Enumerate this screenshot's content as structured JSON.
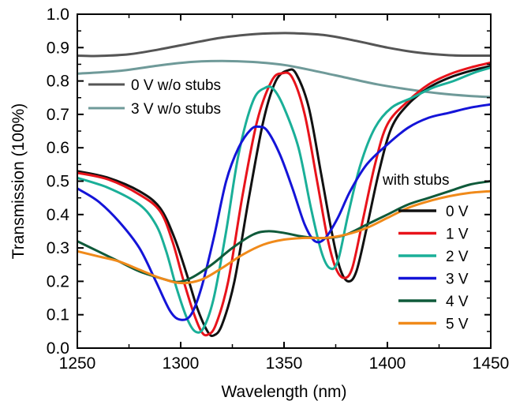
{
  "chart_data": {
    "type": "line",
    "xlabel": "Wavelength (nm)",
    "ylabel": "Transmission (100%)",
    "xlim": [
      1250,
      1450
    ],
    "ylim": [
      0.0,
      1.0
    ],
    "xticks": [
      1250,
      1300,
      1350,
      1400,
      1450
    ],
    "xtick_labels": [
      "1250",
      "1300",
      "1350",
      "1400",
      "1450"
    ],
    "yticks": [
      0.0,
      0.1,
      0.2,
      0.3,
      0.4,
      0.5,
      0.6,
      0.7,
      0.8,
      0.9,
      1.0
    ],
    "ytick_labels": [
      "0.0",
      "0.1",
      "0.2",
      "0.3",
      "0.4",
      "0.5",
      "0.6",
      "0.7",
      "0.8",
      "0.9",
      "1.0"
    ],
    "grid": false,
    "legend_title": "with stubs",
    "series": [
      {
        "name": "0 V w/o stubs",
        "color": "#555555",
        "legend_group": "top",
        "points": [
          [
            1250,
            0.876
          ],
          [
            1260,
            0.875
          ],
          [
            1275,
            0.88
          ],
          [
            1290,
            0.895
          ],
          [
            1305,
            0.913
          ],
          [
            1320,
            0.93
          ],
          [
            1335,
            0.94
          ],
          [
            1345,
            0.943
          ],
          [
            1355,
            0.943
          ],
          [
            1370,
            0.937
          ],
          [
            1385,
            0.92
          ],
          [
            1400,
            0.9
          ],
          [
            1415,
            0.885
          ],
          [
            1430,
            0.877
          ],
          [
            1440,
            0.876
          ],
          [
            1450,
            0.876
          ]
        ]
      },
      {
        "name": "3 V w/o stubs",
        "color": "#6f9a99",
        "legend_group": "top",
        "points": [
          [
            1250,
            0.822
          ],
          [
            1270,
            0.83
          ],
          [
            1290,
            0.847
          ],
          [
            1305,
            0.857
          ],
          [
            1320,
            0.86
          ],
          [
            1335,
            0.857
          ],
          [
            1350,
            0.848
          ],
          [
            1365,
            0.83
          ],
          [
            1380,
            0.81
          ],
          [
            1395,
            0.79
          ],
          [
            1410,
            0.775
          ],
          [
            1425,
            0.763
          ],
          [
            1440,
            0.755
          ],
          [
            1450,
            0.752
          ]
        ]
      },
      {
        "name": "0 V",
        "color": "#111111",
        "legend_group": "stubs",
        "points": [
          [
            1250,
            0.53
          ],
          [
            1265,
            0.51
          ],
          [
            1280,
            0.47
          ],
          [
            1290,
            0.42
          ],
          [
            1297,
            0.33
          ],
          [
            1303,
            0.22
          ],
          [
            1308,
            0.12
          ],
          [
            1313,
            0.05
          ],
          [
            1316,
            0.038
          ],
          [
            1320,
            0.07
          ],
          [
            1326,
            0.2
          ],
          [
            1333,
            0.45
          ],
          [
            1340,
            0.68
          ],
          [
            1346,
            0.8
          ],
          [
            1352,
            0.832
          ],
          [
            1356,
            0.82
          ],
          [
            1362,
            0.72
          ],
          [
            1368,
            0.52
          ],
          [
            1373,
            0.35
          ],
          [
            1377,
            0.24
          ],
          [
            1381,
            0.2
          ],
          [
            1385,
            0.23
          ],
          [
            1390,
            0.36
          ],
          [
            1396,
            0.53
          ],
          [
            1402,
            0.66
          ],
          [
            1410,
            0.73
          ],
          [
            1420,
            0.78
          ],
          [
            1430,
            0.81
          ],
          [
            1440,
            0.83
          ],
          [
            1450,
            0.845
          ]
        ]
      },
      {
        "name": "1 V",
        "color": "#e8131b",
        "legend_group": "stubs",
        "points": [
          [
            1250,
            0.525
          ],
          [
            1265,
            0.505
          ],
          [
            1280,
            0.46
          ],
          [
            1290,
            0.41
          ],
          [
            1296,
            0.32
          ],
          [
            1301,
            0.21
          ],
          [
            1306,
            0.11
          ],
          [
            1310,
            0.05
          ],
          [
            1313,
            0.04
          ],
          [
            1317,
            0.07
          ],
          [
            1323,
            0.2
          ],
          [
            1330,
            0.46
          ],
          [
            1337,
            0.68
          ],
          [
            1344,
            0.8
          ],
          [
            1349,
            0.823
          ],
          [
            1354,
            0.81
          ],
          [
            1360,
            0.7
          ],
          [
            1366,
            0.5
          ],
          [
            1371,
            0.33
          ],
          [
            1375,
            0.24
          ],
          [
            1379,
            0.21
          ],
          [
            1383,
            0.24
          ],
          [
            1388,
            0.38
          ],
          [
            1394,
            0.55
          ],
          [
            1400,
            0.67
          ],
          [
            1410,
            0.74
          ],
          [
            1420,
            0.79
          ],
          [
            1430,
            0.82
          ],
          [
            1440,
            0.84
          ],
          [
            1450,
            0.855
          ]
        ]
      },
      {
        "name": "2 V",
        "color": "#1aaf98",
        "legend_group": "stubs",
        "points": [
          [
            1250,
            0.51
          ],
          [
            1265,
            0.48
          ],
          [
            1280,
            0.43
          ],
          [
            1288,
            0.37
          ],
          [
            1293,
            0.29
          ],
          [
            1298,
            0.18
          ],
          [
            1303,
            0.09
          ],
          [
            1307,
            0.05
          ],
          [
            1311,
            0.06
          ],
          [
            1316,
            0.15
          ],
          [
            1322,
            0.35
          ],
          [
            1328,
            0.58
          ],
          [
            1335,
            0.74
          ],
          [
            1341,
            0.78
          ],
          [
            1345,
            0.775
          ],
          [
            1350,
            0.72
          ],
          [
            1357,
            0.6
          ],
          [
            1363,
            0.42
          ],
          [
            1368,
            0.29
          ],
          [
            1372,
            0.24
          ],
          [
            1376,
            0.26
          ],
          [
            1381,
            0.4
          ],
          [
            1387,
            0.55
          ],
          [
            1394,
            0.66
          ],
          [
            1402,
            0.72
          ],
          [
            1412,
            0.75
          ],
          [
            1422,
            0.78
          ],
          [
            1432,
            0.8
          ],
          [
            1442,
            0.825
          ],
          [
            1450,
            0.84
          ]
        ]
      },
      {
        "name": "3 V",
        "color": "#1414d8",
        "legend_group": "stubs",
        "points": [
          [
            1250,
            0.478
          ],
          [
            1260,
            0.44
          ],
          [
            1270,
            0.38
          ],
          [
            1280,
            0.3
          ],
          [
            1288,
            0.2
          ],
          [
            1295,
            0.11
          ],
          [
            1300,
            0.085
          ],
          [
            1305,
            0.1
          ],
          [
            1310,
            0.18
          ],
          [
            1316,
            0.33
          ],
          [
            1322,
            0.5
          ],
          [
            1328,
            0.6
          ],
          [
            1334,
            0.655
          ],
          [
            1338,
            0.663
          ],
          [
            1342,
            0.65
          ],
          [
            1348,
            0.58
          ],
          [
            1354,
            0.48
          ],
          [
            1360,
            0.37
          ],
          [
            1365,
            0.32
          ],
          [
            1370,
            0.33
          ],
          [
            1376,
            0.39
          ],
          [
            1382,
            0.47
          ],
          [
            1390,
            0.55
          ],
          [
            1400,
            0.61
          ],
          [
            1410,
            0.66
          ],
          [
            1420,
            0.69
          ],
          [
            1430,
            0.705
          ],
          [
            1440,
            0.72
          ],
          [
            1450,
            0.73
          ]
        ]
      },
      {
        "name": "4 V",
        "color": "#0f5a3a",
        "legend_group": "stubs",
        "points": [
          [
            1250,
            0.32
          ],
          [
            1260,
            0.29
          ],
          [
            1270,
            0.26
          ],
          [
            1280,
            0.23
          ],
          [
            1290,
            0.21
          ],
          [
            1298,
            0.198
          ],
          [
            1305,
            0.21
          ],
          [
            1315,
            0.25
          ],
          [
            1325,
            0.3
          ],
          [
            1335,
            0.34
          ],
          [
            1342,
            0.35
          ],
          [
            1350,
            0.345
          ],
          [
            1358,
            0.335
          ],
          [
            1365,
            0.33
          ],
          [
            1372,
            0.33
          ],
          [
            1380,
            0.34
          ],
          [
            1390,
            0.37
          ],
          [
            1400,
            0.4
          ],
          [
            1410,
            0.43
          ],
          [
            1420,
            0.45
          ],
          [
            1430,
            0.47
          ],
          [
            1440,
            0.49
          ],
          [
            1450,
            0.5
          ]
        ]
      },
      {
        "name": "5 V",
        "color": "#f08a1a",
        "legend_group": "stubs",
        "points": [
          [
            1250,
            0.29
          ],
          [
            1260,
            0.275
          ],
          [
            1270,
            0.26
          ],
          [
            1280,
            0.235
          ],
          [
            1290,
            0.21
          ],
          [
            1300,
            0.195
          ],
          [
            1310,
            0.205
          ],
          [
            1320,
            0.24
          ],
          [
            1330,
            0.28
          ],
          [
            1340,
            0.31
          ],
          [
            1350,
            0.325
          ],
          [
            1360,
            0.33
          ],
          [
            1370,
            0.33
          ],
          [
            1380,
            0.34
          ],
          [
            1390,
            0.36
          ],
          [
            1400,
            0.39
          ],
          [
            1410,
            0.42
          ],
          [
            1420,
            0.44
          ],
          [
            1430,
            0.455
          ],
          [
            1440,
            0.465
          ],
          [
            1450,
            0.47
          ]
        ]
      }
    ]
  }
}
